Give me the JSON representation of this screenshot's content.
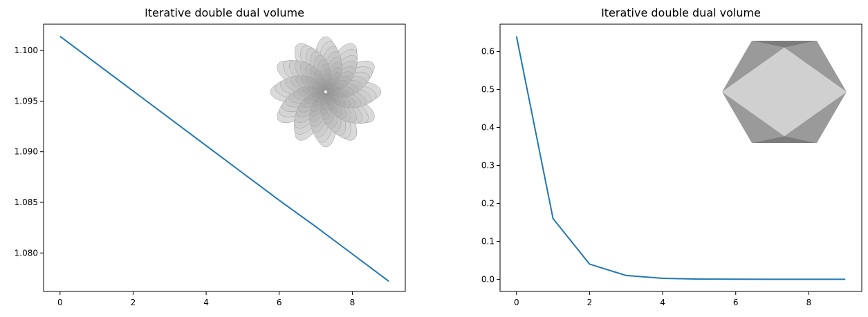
{
  "colors": {
    "series": "#1f77b4",
    "inset_light": "#d0d0d0",
    "inset_mid": "#9a9a9a",
    "inset_dark": "#7c7c7c"
  },
  "chart_data": [
    {
      "type": "line",
      "title": "Iterative double dual volume",
      "xlabel": "",
      "ylabel": "",
      "xlim": [
        -0.45,
        9.45
      ],
      "ylim": [
        1.0762,
        1.1026
      ],
      "xticks": [
        0,
        2,
        4,
        6,
        8
      ],
      "xtick_labels": [
        "0",
        "2",
        "4",
        "6",
        "8"
      ],
      "yticks": [
        1.08,
        1.085,
        1.09,
        1.095,
        1.1
      ],
      "ytick_labels": [
        "1.080",
        "1.085",
        "1.090",
        "1.095",
        "1.100"
      ],
      "grid": false,
      "x": [
        0,
        1,
        2,
        3,
        4,
        5,
        6,
        7,
        8,
        9
      ],
      "series": [
        {
          "values": [
            1.1014,
            1.0987,
            1.096,
            1.0933,
            1.0906,
            1.0879,
            1.0852,
            1.0826,
            1.0799,
            1.0772
          ]
        }
      ],
      "inset_icon": "flower-polygon-image"
    },
    {
      "type": "line",
      "title": "Iterative double dual volume",
      "xlabel": "",
      "ylabel": "",
      "xlim": [
        -0.45,
        9.45
      ],
      "ylim": [
        -0.032,
        0.672
      ],
      "xticks": [
        0,
        2,
        4,
        6,
        8
      ],
      "xtick_labels": [
        "0",
        "2",
        "4",
        "6",
        "8"
      ],
      "yticks": [
        0.0,
        0.1,
        0.2,
        0.3,
        0.4,
        0.5,
        0.6
      ],
      "ytick_labels": [
        "0.0",
        "0.1",
        "0.2",
        "0.3",
        "0.4",
        "0.5",
        "0.6"
      ],
      "grid": false,
      "x": [
        0,
        1,
        2,
        3,
        4,
        5,
        6,
        7,
        8,
        9
      ],
      "series": [
        {
          "values": [
            0.64,
            0.16,
            0.04,
            0.01,
            0.0025,
            0.0006,
            0.0002,
            0.0,
            0.0,
            0.0
          ]
        }
      ],
      "inset_icon": "hexagon-polygon-image"
    }
  ]
}
